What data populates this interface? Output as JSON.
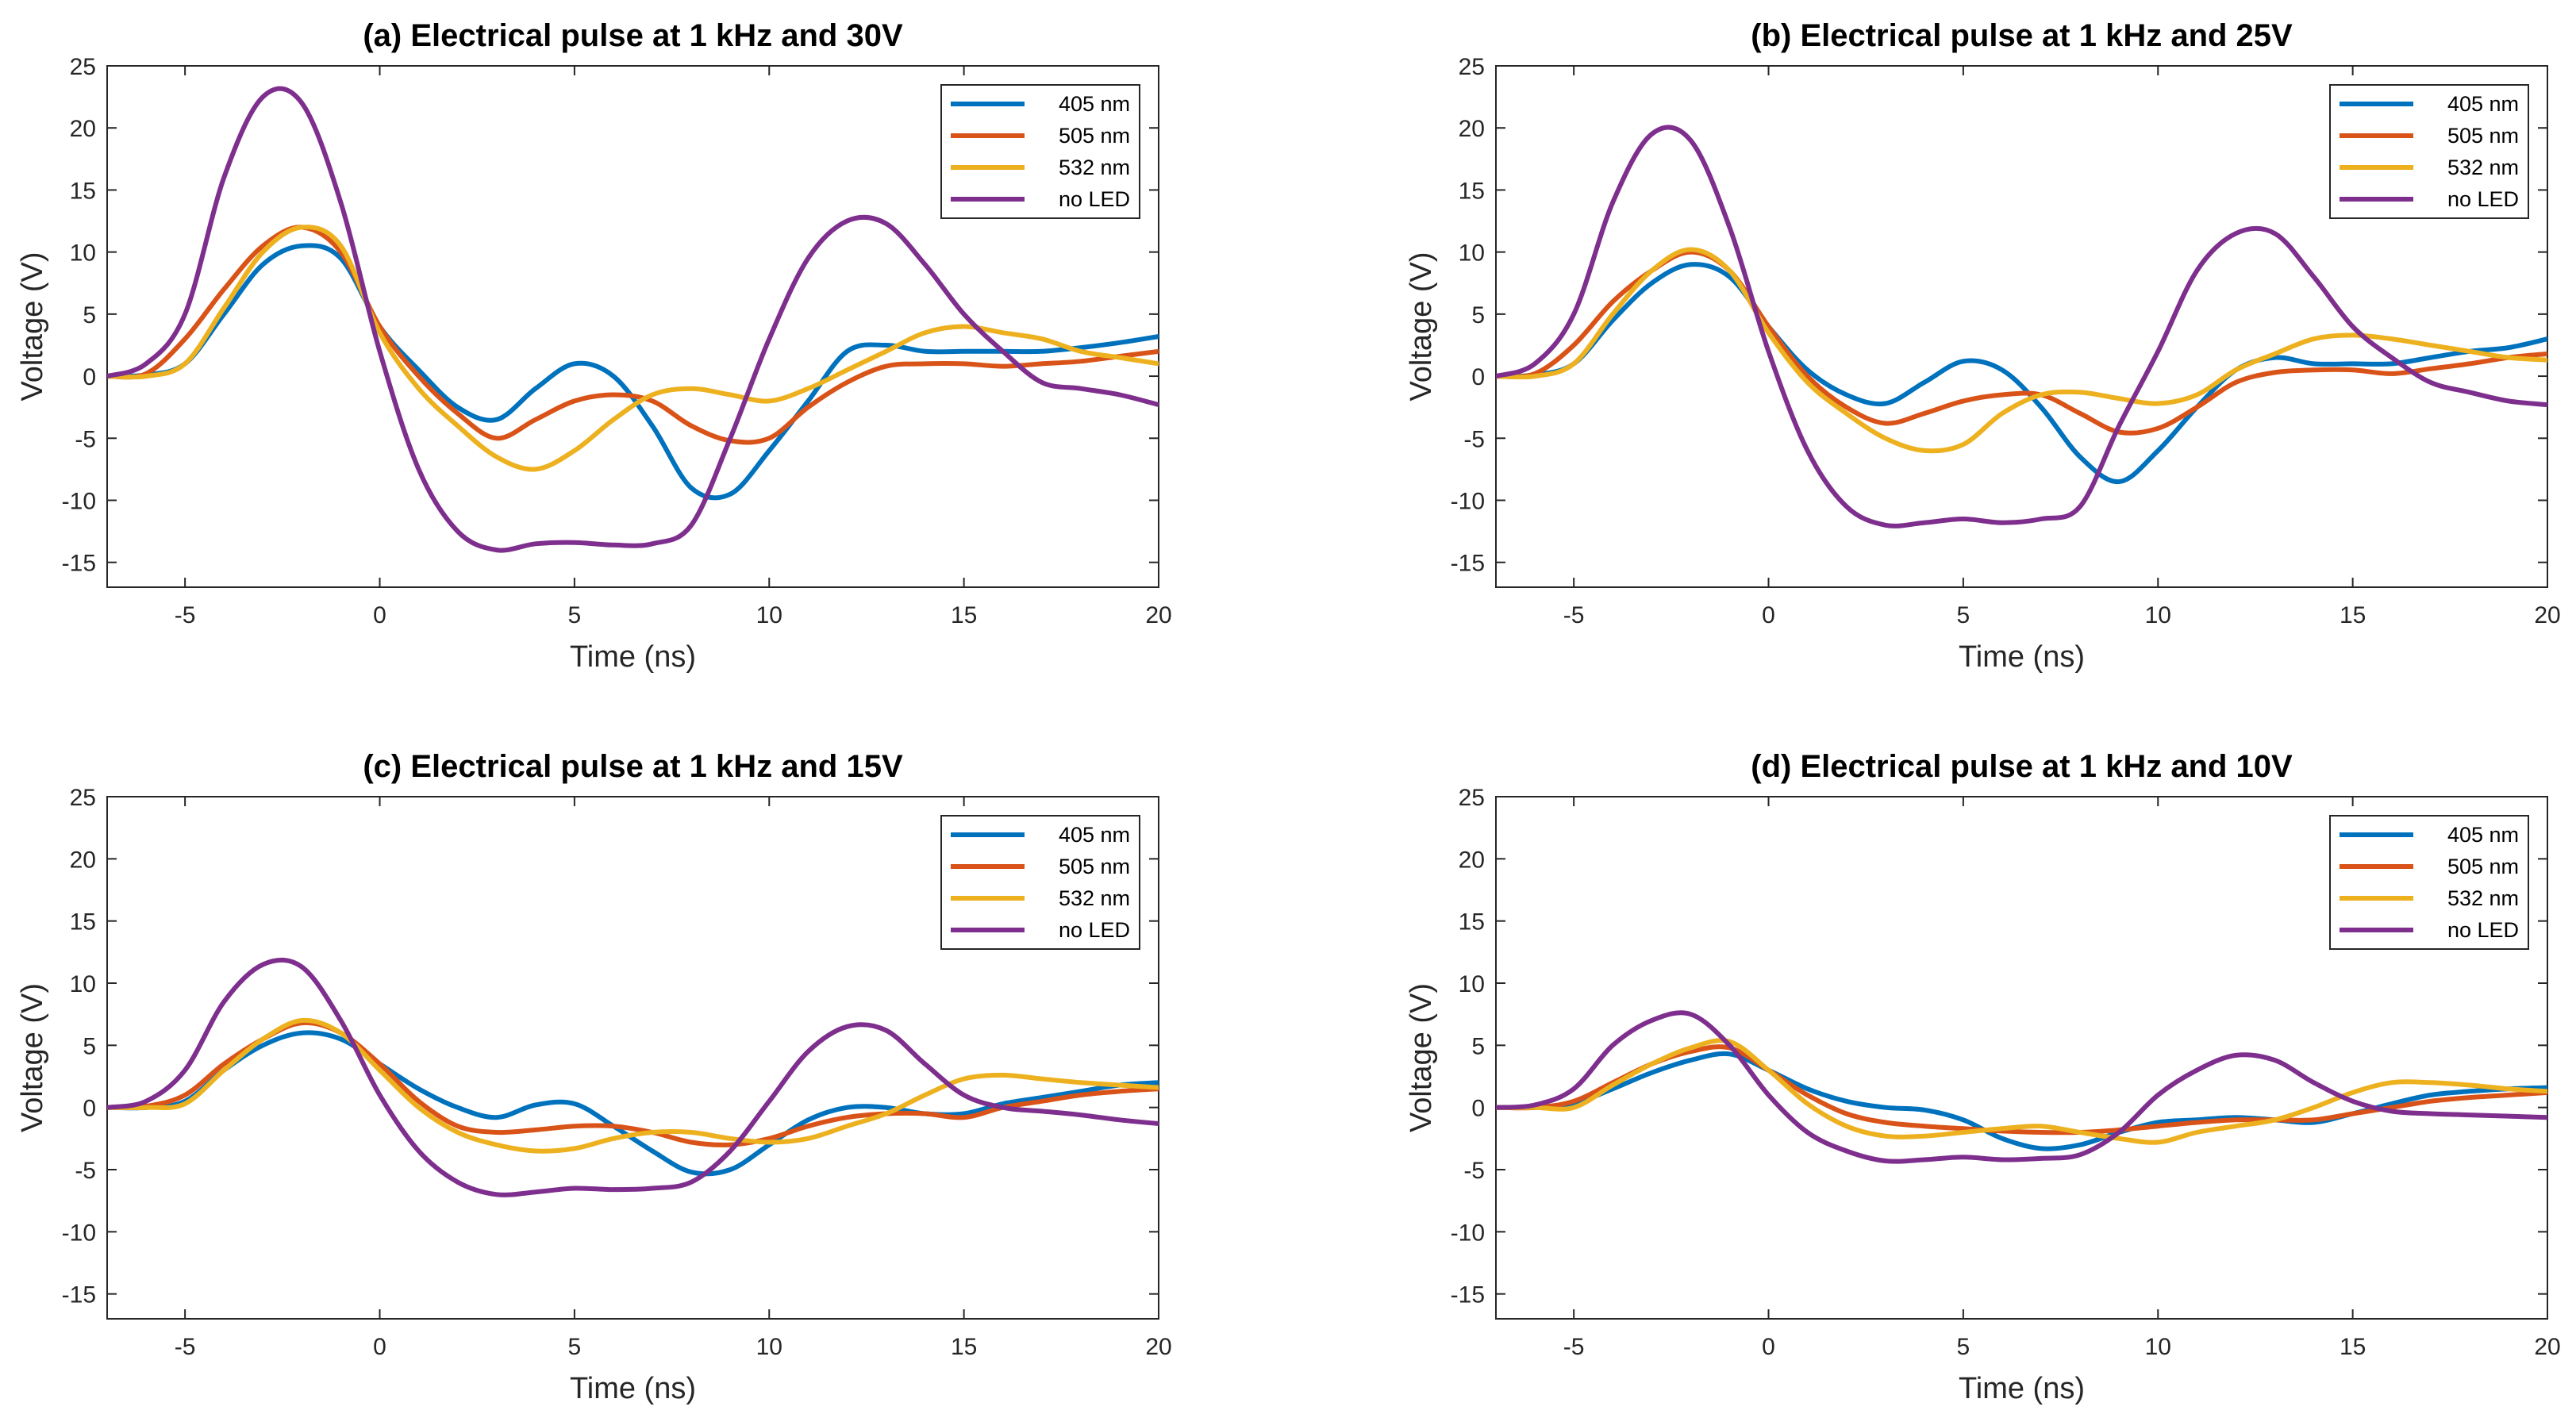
{
  "chart_data": [
    {
      "type": "line",
      "title": "(a) Electrical pulse at 1 kHz and 30V",
      "xlabel": "Time (ns)",
      "ylabel": "Voltage (V)",
      "xlim": [
        -7,
        20
      ],
      "ylim": [
        -17,
        25
      ],
      "xticks": [
        -5,
        0,
        5,
        10,
        15,
        20
      ],
      "yticks": [
        -15,
        -10,
        -5,
        0,
        5,
        10,
        15,
        20,
        25
      ],
      "grid": false,
      "legend_position": "top-right",
      "series": [
        {
          "name": "405 nm",
          "color": "#0072BD",
          "x": [
            -7,
            -6,
            -5,
            -4,
            -3,
            -2,
            -1,
            0,
            1,
            2,
            3,
            4,
            5,
            6,
            7,
            8,
            9,
            10,
            11,
            12,
            13,
            14,
            15,
            16,
            17,
            18,
            19,
            20
          ],
          "y": [
            0,
            0.1,
            1,
            5,
            9,
            10.5,
            9.5,
            4,
            0.5,
            -2.5,
            -3.5,
            -1,
            1,
            0,
            -4,
            -9,
            -9.5,
            -6,
            -2,
            2,
            2.5,
            2,
            2,
            2,
            2,
            2.3,
            2.7,
            3.2
          ]
        },
        {
          "name": "505 nm",
          "color": "#D95319",
          "x": [
            -7,
            -6,
            -5,
            -4,
            -3,
            -2,
            -1,
            0,
            1,
            2,
            3,
            4,
            5,
            6,
            7,
            8,
            9,
            10,
            11,
            12,
            13,
            14,
            15,
            16,
            17,
            18,
            19,
            20
          ],
          "y": [
            0,
            0.2,
            3,
            7,
            10.5,
            12,
            10,
            4,
            0,
            -3,
            -5,
            -3.5,
            -2,
            -1.5,
            -2,
            -4,
            -5.2,
            -5,
            -2.5,
            -0.5,
            0.8,
            1,
            1,
            0.8,
            1,
            1.2,
            1.6,
            2
          ]
        },
        {
          "name": "532 nm",
          "color": "#EDB120",
          "x": [
            -7,
            -6,
            -5,
            -4,
            -3,
            -2,
            -1,
            0,
            1,
            2,
            3,
            4,
            5,
            6,
            7,
            8,
            9,
            10,
            11,
            12,
            13,
            14,
            15,
            16,
            17,
            18,
            19,
            20
          ],
          "y": [
            0,
            0,
            1,
            5.5,
            10,
            12,
            10.5,
            3.5,
            -1,
            -4,
            -6.5,
            -7.5,
            -6,
            -3.5,
            -1.5,
            -1,
            -1.5,
            -2,
            -1,
            0.5,
            2,
            3.5,
            4,
            3.5,
            3,
            2,
            1.5,
            1
          ]
        },
        {
          "name": "no LED",
          "color": "#7E2F8E",
          "x": [
            -7,
            -6,
            -5,
            -4,
            -3,
            -2,
            -1,
            0,
            1,
            2,
            3,
            4,
            5,
            6,
            7,
            8,
            9,
            10,
            11,
            12,
            13,
            14,
            15,
            16,
            17,
            18,
            19,
            20
          ],
          "y": [
            0,
            1,
            5,
            16,
            22.5,
            22,
            14,
            2,
            -7.5,
            -12.5,
            -14,
            -13.5,
            -13.4,
            -13.6,
            -13.5,
            -12,
            -5,
            3,
            9.5,
            12.5,
            12.3,
            9,
            5,
            2,
            -0.5,
            -1,
            -1.5,
            -2.3
          ]
        }
      ]
    },
    {
      "type": "line",
      "title": "(b) Electrical pulse at 1 kHz and 25V",
      "xlabel": "Time (ns)",
      "ylabel": "Voltage (V)",
      "xlim": [
        -7,
        20
      ],
      "ylim": [
        -17,
        25
      ],
      "xticks": [
        -5,
        0,
        5,
        10,
        15,
        20
      ],
      "yticks": [
        -15,
        -10,
        -5,
        0,
        5,
        10,
        15,
        20,
        25
      ],
      "grid": false,
      "legend_position": "top-right",
      "series": [
        {
          "name": "405 nm",
          "color": "#0072BD",
          "x": [
            -7,
            -6,
            -5,
            -4,
            -3,
            -2,
            -1,
            0,
            1,
            2,
            3,
            4,
            5,
            6,
            7,
            8,
            9,
            10,
            11,
            12,
            13,
            14,
            15,
            16,
            17,
            18,
            19,
            20
          ],
          "y": [
            0,
            0.1,
            1,
            4.5,
            7.5,
            9,
            8,
            4,
            0.5,
            -1.5,
            -2.2,
            -0.5,
            1.2,
            0.5,
            -2.5,
            -6.5,
            -8.5,
            -6,
            -2.5,
            0.5,
            1.5,
            1,
            1,
            1,
            1.5,
            2,
            2.3,
            3
          ]
        },
        {
          "name": "505 nm",
          "color": "#D95319",
          "x": [
            -7,
            -6,
            -5,
            -4,
            -3,
            -2,
            -1,
            0,
            1,
            2,
            3,
            4,
            5,
            6,
            7,
            8,
            9,
            10,
            11,
            12,
            13,
            14,
            15,
            16,
            17,
            18,
            19,
            20
          ],
          "y": [
            0,
            0.2,
            2.5,
            6,
            8.5,
            10,
            8.5,
            4,
            0,
            -2.5,
            -3.8,
            -3,
            -2,
            -1.5,
            -1.5,
            -3,
            -4.5,
            -4.2,
            -2.5,
            -0.5,
            0.3,
            0.5,
            0.5,
            0.2,
            0.6,
            1,
            1.5,
            1.8
          ]
        },
        {
          "name": "532 nm",
          "color": "#EDB120",
          "x": [
            -7,
            -6,
            -5,
            -4,
            -3,
            -2,
            -1,
            0,
            1,
            2,
            3,
            4,
            5,
            6,
            7,
            8,
            9,
            10,
            11,
            12,
            13,
            14,
            15,
            16,
            17,
            18,
            19,
            20
          ],
          "y": [
            0,
            0,
            1,
            5,
            8.5,
            10.2,
            8.5,
            3.5,
            -0.5,
            -3,
            -5,
            -6,
            -5.5,
            -3,
            -1.5,
            -1.3,
            -1.8,
            -2.2,
            -1.5,
            0.5,
            1.8,
            3,
            3.3,
            3,
            2.5,
            2,
            1.5,
            1.3
          ]
        },
        {
          "name": "no LED",
          "color": "#7E2F8E",
          "x": [
            -7,
            -6,
            -5,
            -4,
            -3,
            -2,
            -1,
            0,
            1,
            2,
            3,
            4,
            5,
            6,
            7,
            8,
            9,
            10,
            11,
            12,
            13,
            14,
            15,
            16,
            17,
            18,
            19,
            20
          ],
          "y": [
            0,
            1,
            5,
            14,
            19.5,
            19,
            12,
            2,
            -6,
            -10.5,
            -12,
            -11.8,
            -11.5,
            -11.8,
            -11.5,
            -10.5,
            -4,
            2,
            8.5,
            11.5,
            11.5,
            8,
            4,
            1.5,
            -0.5,
            -1.3,
            -2,
            -2.3
          ]
        }
      ]
    },
    {
      "type": "line",
      "title": "(c) Electrical pulse at 1 kHz and 15V",
      "xlabel": "Time (ns)",
      "ylabel": "Voltage (V)",
      "xlim": [
        -7,
        20
      ],
      "ylim": [
        -17,
        25
      ],
      "xticks": [
        -5,
        0,
        5,
        10,
        15,
        20
      ],
      "yticks": [
        -15,
        -10,
        -5,
        0,
        5,
        10,
        15,
        20,
        25
      ],
      "grid": false,
      "legend_position": "top-right",
      "series": [
        {
          "name": "405 nm",
          "color": "#0072BD",
          "x": [
            -7,
            -6,
            -5,
            -4,
            -3,
            -2,
            -1,
            0,
            1,
            2,
            3,
            4,
            5,
            6,
            7,
            8,
            9,
            10,
            11,
            12,
            13,
            14,
            15,
            16,
            17,
            18,
            19,
            20
          ],
          "y": [
            0,
            0,
            0.5,
            3,
            5,
            6,
            5.5,
            3.5,
            1.5,
            0,
            -0.8,
            0.2,
            0.3,
            -1.5,
            -3.5,
            -5.2,
            -5,
            -3,
            -1,
            0,
            0,
            -0.5,
            -0.5,
            0.3,
            0.8,
            1.3,
            1.8,
            2
          ]
        },
        {
          "name": "505 nm",
          "color": "#D95319",
          "x": [
            -7,
            -6,
            -5,
            -4,
            -3,
            -2,
            -1,
            0,
            1,
            2,
            3,
            4,
            5,
            6,
            7,
            8,
            9,
            10,
            11,
            12,
            13,
            14,
            15,
            16,
            17,
            18,
            19,
            20
          ],
          "y": [
            0,
            0.1,
            1,
            3.5,
            5.5,
            6.8,
            6,
            3.5,
            0.5,
            -1.5,
            -2,
            -1.8,
            -1.5,
            -1.5,
            -2,
            -2.8,
            -3,
            -2.5,
            -1.5,
            -0.8,
            -0.5,
            -0.5,
            -0.8,
            0,
            0.5,
            1,
            1.3,
            1.5
          ]
        },
        {
          "name": "532 nm",
          "color": "#EDB120",
          "x": [
            -7,
            -6,
            -5,
            -4,
            -3,
            -2,
            -1,
            0,
            1,
            2,
            3,
            4,
            5,
            6,
            7,
            8,
            9,
            10,
            11,
            12,
            13,
            14,
            15,
            16,
            17,
            18,
            19,
            20
          ],
          "y": [
            0,
            0,
            0.3,
            3,
            5.5,
            7,
            6,
            3,
            0,
            -2,
            -3,
            -3.5,
            -3.3,
            -2.5,
            -2,
            -2,
            -2.5,
            -2.8,
            -2.5,
            -1.5,
            -0.5,
            1,
            2.3,
            2.6,
            2.3,
            2,
            1.8,
            1.6
          ]
        },
        {
          "name": "no LED",
          "color": "#7E2F8E",
          "x": [
            -7,
            -6,
            -5,
            -4,
            -3,
            -2,
            -1,
            0,
            1,
            2,
            3,
            4,
            5,
            6,
            7,
            8,
            9,
            10,
            11,
            12,
            13,
            14,
            15,
            16,
            17,
            18,
            19,
            20
          ],
          "y": [
            0,
            0.5,
            3,
            8.5,
            11.5,
            11.3,
            7,
            1,
            -3.5,
            -6,
            -7,
            -6.8,
            -6.5,
            -6.6,
            -6.5,
            -6,
            -3.5,
            0.5,
            4.5,
            6.5,
            6.2,
            3.5,
            1,
            0,
            -0.3,
            -0.6,
            -1,
            -1.3
          ]
        }
      ]
    },
    {
      "type": "line",
      "title": "(d) Electrical pulse at 1 kHz and 10V",
      "xlabel": "Time (ns)",
      "ylabel": "Voltage (V)",
      "xlim": [
        -7,
        20
      ],
      "ylim": [
        -17,
        25
      ],
      "xticks": [
        -5,
        0,
        5,
        10,
        15,
        20
      ],
      "yticks": [
        -15,
        -10,
        -5,
        0,
        5,
        10,
        15,
        20,
        25
      ],
      "grid": false,
      "legend_position": "top-right",
      "series": [
        {
          "name": "405 nm",
          "color": "#0072BD",
          "x": [
            -7,
            -6,
            -5,
            -4,
            -3,
            -2,
            -1,
            0,
            1,
            2,
            3,
            4,
            5,
            6,
            7,
            8,
            9,
            10,
            11,
            12,
            13,
            14,
            15,
            16,
            17,
            18,
            19,
            20
          ],
          "y": [
            0,
            0,
            0.3,
            1.5,
            2.8,
            3.8,
            4.3,
            3,
            1.5,
            0.5,
            0,
            -0.2,
            -1,
            -2.5,
            -3.3,
            -3,
            -2,
            -1.2,
            -1,
            -0.8,
            -1,
            -1.2,
            -0.5,
            0.3,
            1,
            1.3,
            1.5,
            1.6
          ]
        },
        {
          "name": "505 nm",
          "color": "#D95319",
          "x": [
            -7,
            -6,
            -5,
            -4,
            -3,
            -2,
            -1,
            0,
            1,
            2,
            3,
            4,
            5,
            6,
            7,
            8,
            9,
            10,
            11,
            12,
            13,
            14,
            15,
            16,
            17,
            18,
            19,
            20
          ],
          "y": [
            0,
            0,
            0.5,
            2,
            3.5,
            4.5,
            4.8,
            3,
            1,
            -0.5,
            -1.2,
            -1.5,
            -1.7,
            -1.9,
            -2,
            -2,
            -1.8,
            -1.5,
            -1.2,
            -1,
            -1,
            -1,
            -0.5,
            0,
            0.5,
            0.8,
            1,
            1.2
          ]
        },
        {
          "name": "532 nm",
          "color": "#EDB120",
          "x": [
            -7,
            -6,
            -5,
            -4,
            -3,
            -2,
            -1,
            0,
            1,
            2,
            3,
            4,
            5,
            6,
            7,
            8,
            9,
            10,
            11,
            12,
            13,
            14,
            15,
            16,
            17,
            18,
            19,
            20
          ],
          "y": [
            0,
            0,
            0,
            1.8,
            3.5,
            4.8,
            5.3,
            3,
            0.3,
            -1.5,
            -2.3,
            -2.3,
            -2,
            -1.7,
            -1.5,
            -2,
            -2.5,
            -2.8,
            -2,
            -1.5,
            -1,
            0,
            1.2,
            2,
            2,
            1.8,
            1.5,
            1.3
          ]
        },
        {
          "name": "no LED",
          "color": "#7E2F8E",
          "x": [
            -7,
            -6,
            -5,
            -4,
            -3,
            -2,
            -1,
            0,
            1,
            2,
            3,
            4,
            5,
            6,
            7,
            8,
            9,
            10,
            11,
            12,
            13,
            14,
            15,
            16,
            17,
            18,
            19,
            20
          ],
          "y": [
            0,
            0.2,
            1.5,
            5,
            7,
            7.5,
            5,
            1,
            -2,
            -3.5,
            -4.3,
            -4.2,
            -4,
            -4.2,
            -4.1,
            -3.8,
            -2,
            1,
            3,
            4.2,
            3.8,
            2,
            0.5,
            -0.3,
            -0.5,
            -0.6,
            -0.7,
            -0.8
          ]
        }
      ]
    }
  ]
}
